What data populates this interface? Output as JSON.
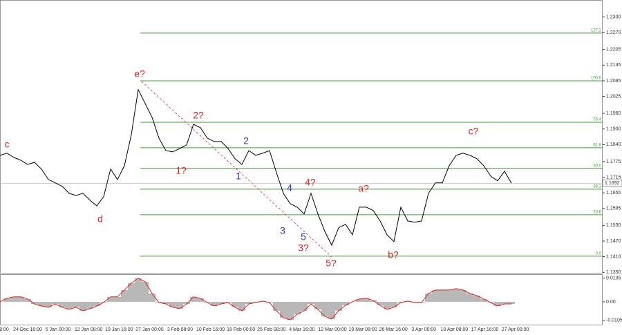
{
  "chart_data": [
    {
      "type": "line",
      "name_panel": "price",
      "values": [
        1.1799,
        1.1807,
        1.1791,
        1.178,
        1.1764,
        1.1772,
        1.1746,
        1.1706,
        1.1693,
        1.168,
        1.1653,
        1.1645,
        1.1653,
        1.1627,
        1.1605,
        1.164,
        1.1746,
        1.1706,
        1.1759,
        1.1878,
        1.2051,
        1.1998,
        1.1945,
        1.1865,
        1.1817,
        1.1812,
        1.1825,
        1.1839,
        1.1918,
        1.1905,
        1.1865,
        1.1852,
        1.1852,
        1.1825,
        1.1786,
        1.1764,
        1.1817,
        1.1799,
        1.1807,
        1.1817,
        1.1733,
        1.1653,
        1.1613,
        1.16,
        1.1574,
        1.1653,
        1.1574,
        1.1507,
        1.1454,
        1.1521,
        1.1534,
        1.1494,
        1.16,
        1.16,
        1.1587,
        1.1547,
        1.1494,
        1.1468,
        1.16,
        1.1547,
        1.1542,
        1.1547,
        1.1653,
        1.1693,
        1.1693,
        1.1759,
        1.1799,
        1.1807,
        1.1799,
        1.1786,
        1.1759,
        1.1719,
        1.1701,
        1.1738,
        1.1692
      ],
      "color": "#000000",
      "ylim": [
        1.1348,
        1.2395
      ],
      "yticks": [
        {
          "value": 1.233,
          "label": "1.2330"
        },
        {
          "value": 1.227,
          "label": "1.2270"
        },
        {
          "value": 1.2205,
          "label": "1.2205"
        },
        {
          "value": 1.2145,
          "label": "1.2145"
        },
        {
          "value": 1.2085,
          "label": "1.2085"
        },
        {
          "value": 1.2025,
          "label": "1.2025"
        },
        {
          "value": 1.196,
          "label": "1.1960"
        },
        {
          "value": 1.19,
          "label": "1.1900"
        },
        {
          "value": 1.184,
          "label": "1.1840"
        },
        {
          "value": 1.1775,
          "label": "1.1775"
        },
        {
          "value": 1.1715,
          "label": "1.1715"
        },
        {
          "value": 1.1655,
          "label": "1.1655"
        },
        {
          "value": 1.1595,
          "label": "1.1595"
        },
        {
          "value": 1.153,
          "label": "1.1530"
        },
        {
          "value": 1.147,
          "label": "1.1470"
        },
        {
          "value": 1.141,
          "label": "1.1410"
        },
        {
          "value": 1.135,
          "label": "1.1350"
        }
      ],
      "current_price": {
        "value": 1.1692,
        "label": "1.1692"
      },
      "fib_color": "#3c9a3c",
      "fib_levels": [
        {
          "label": "0.0",
          "price": 1.1412
        },
        {
          "label": "23.6",
          "price": 1.1571
        },
        {
          "label": "38.2",
          "price": 1.1669
        },
        {
          "label": "50.0",
          "price": 1.1749
        },
        {
          "label": "61.8",
          "price": 1.1828
        },
        {
          "label": "76.4",
          "price": 1.1926
        },
        {
          "label": "100.0",
          "price": 1.2085
        },
        {
          "label": "127.2",
          "price": 1.2268
        }
      ],
      "wave_labels": [
        {
          "text": "c",
          "color": "#e02020"
        },
        {
          "text": "d",
          "color": "#e02020"
        },
        {
          "text": "e?",
          "color": "#e02020"
        },
        {
          "text": "1?",
          "color": "#e02020"
        },
        {
          "text": "2?",
          "color": "#e02020"
        },
        {
          "text": "1",
          "color": "#3030d0"
        },
        {
          "text": "2",
          "color": "#3030d0"
        },
        {
          "text": "3",
          "color": "#3030d0"
        },
        {
          "text": "4",
          "color": "#3030d0"
        },
        {
          "text": "5",
          "color": "#3030d0"
        },
        {
          "text": "4?",
          "color": "#e02020"
        },
        {
          "text": "3?",
          "color": "#e02020"
        },
        {
          "text": "5?",
          "color": "#e02020"
        },
        {
          "text": "a?",
          "color": "#e02020"
        },
        {
          "text": "b?",
          "color": "#e02020"
        },
        {
          "text": "c?",
          "color": "#e02020"
        }
      ],
      "x_labels": [
        "8:00",
        "24 Dec 16:00",
        "5 Jan 00:00",
        "12 Jan 08:00",
        "19 Jan 16:00",
        "27 Jan 00:00",
        "3 Feb 08:00",
        "10 Feb 16:00",
        "18 Feb 00:00",
        "25 Feb 08:00",
        "4 Mar 16:00",
        "12 Mar 00:00",
        "19 Mar 08:00",
        "26 Mar 16:00",
        "3 Apr 00:00",
        "10 Apr 08:00",
        "17 Apr 16:00",
        "27 Apr 00:00"
      ]
    },
    {
      "type": "histogram-line",
      "name_panel": "oscillator",
      "values": [
        0,
        0.002,
        0.0028,
        0.0028,
        0.0016,
        -0.0012,
        -0.0024,
        -0.0031,
        -0.0012,
        -0.0031,
        -0.0043,
        -0.0031,
        -0.0051,
        -0.0039,
        -0.0024,
        -0.0004,
        0.0028,
        0.0028,
        0.0067,
        0.0106,
        0.0134,
        0.0114,
        0.0047,
        -0.0004,
        -0.0012,
        -0.0031,
        -0.0039,
        -0.0012,
        0.0028,
        0.002,
        -0.0004,
        -0.0024,
        -0.0012,
        -0.0004,
        -0.0031,
        -0.0051,
        -0.0012,
        -0.0004,
        0.0004,
        -0.0004,
        -0.0051,
        -0.0091,
        -0.0102,
        -0.0071,
        -0.0051,
        -0.0012,
        -0.0043,
        -0.0083,
        -0.0098,
        -0.0051,
        -0.002,
        0,
        0.0016,
        0.002,
        0.0008,
        -0.002,
        -0.0043,
        -0.0031,
        -0.0004,
        0.0004,
        -0.0004,
        -0.0004,
        0.0047,
        0.0067,
        0.0067,
        0.0067,
        0.0075,
        0.0067,
        0.0047,
        0.0035,
        0.0016,
        -0.0004,
        -0.0024,
        -0.0012,
        -0.0012
      ],
      "color": "#e02020",
      "bar_color": "#b8b8b8",
      "ylim": [
        -0.013,
        0.0157
      ],
      "yticks": [
        {
          "value": 0.0135,
          "label": "0.0135"
        },
        {
          "value": 0,
          "label": "0.00"
        },
        {
          "value": -0.0105,
          "label": "-0.0105"
        }
      ]
    }
  ]
}
